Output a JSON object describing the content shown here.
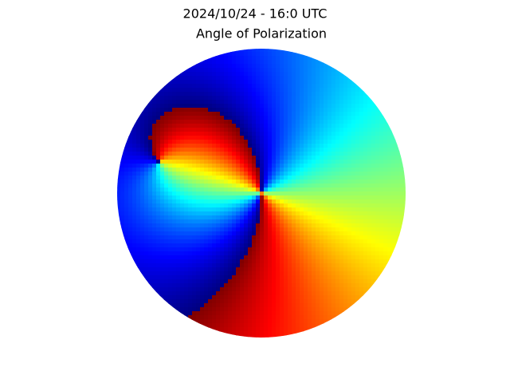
{
  "chart_data": {
    "type": "polar-colormap",
    "title": "2024/10/24 - 16:0 UTC",
    "subtitle": "Angle of Polarization"
  }
}
